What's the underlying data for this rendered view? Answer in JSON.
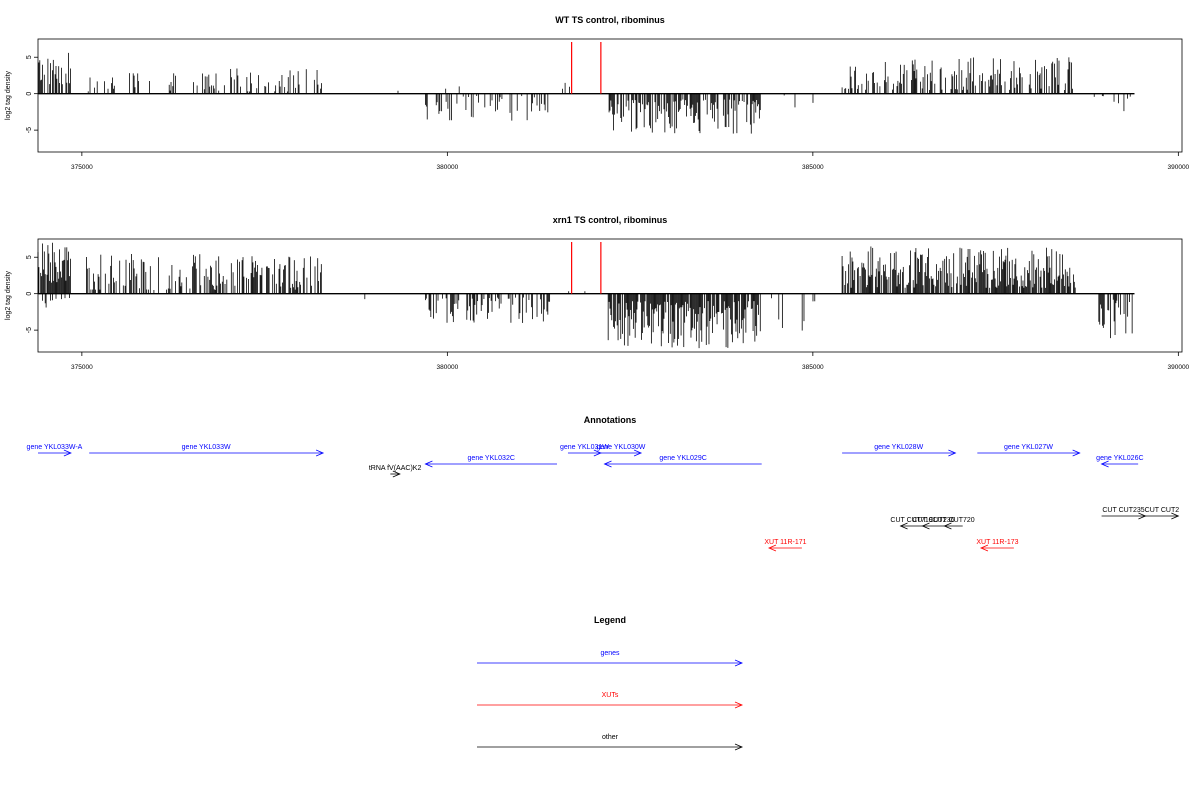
{
  "colors": {
    "axis": "#000000",
    "bars": "#000000",
    "marker": "#ff0000",
    "gene": "#0000ff",
    "xut": "#ff0000",
    "other": "#000000"
  },
  "chart_data": [
    {
      "type": "bar",
      "panel": "wt",
      "title": "WT TS control, ribominus",
      "xlabel": "",
      "ylabel": "log2 tag density",
      "xlim": [
        374400,
        390050
      ],
      "ylim": [
        -8,
        7.5
      ],
      "x_ticks": [
        375000,
        380000,
        385000,
        390000
      ],
      "x_tick_labels": [
        "375000",
        "380000",
        "385000",
        "390000"
      ],
      "y_ticks": [
        -5,
        0,
        5
      ],
      "y_tick_labels": [
        "-5",
        "0",
        "5"
      ],
      "marker_lines_x": [
        381700,
        382100
      ],
      "baseline_range": [
        374400,
        389400
      ],
      "segments": [
        {
          "x_start": 374400,
          "x_end": 374850,
          "sign": 1,
          "min": 1.2,
          "max": 5.8,
          "density": 0.55
        },
        {
          "x_start": 375050,
          "x_end": 376900,
          "sign": 1,
          "min": 0.3,
          "max": 3.0,
          "density": 0.22
        },
        {
          "x_start": 376900,
          "x_end": 378300,
          "sign": 1,
          "min": 0.3,
          "max": 3.6,
          "density": 0.24
        },
        {
          "x_start": 378800,
          "x_end": 379300,
          "sign": -1,
          "min": 0.4,
          "max": 1.8,
          "density": 0.06
        },
        {
          "x_start": 379300,
          "x_end": 380500,
          "sign": 1,
          "min": 0.3,
          "max": 1.5,
          "density": 0.03
        },
        {
          "x_start": 379700,
          "x_end": 381400,
          "sign": -1,
          "min": 0.3,
          "max": 4.0,
          "density": 0.28
        },
        {
          "x_start": 381500,
          "x_end": 381900,
          "sign": 1,
          "min": 0.3,
          "max": 1.5,
          "density": 0.08
        },
        {
          "x_start": 382200,
          "x_end": 384300,
          "sign": -1,
          "min": 0.8,
          "max": 5.5,
          "density": 0.6
        },
        {
          "x_start": 384300,
          "x_end": 385200,
          "sign": -1,
          "min": 0.2,
          "max": 2.5,
          "density": 0.05
        },
        {
          "x_start": 385400,
          "x_end": 388600,
          "sign": 1,
          "min": 0.5,
          "max": 5.0,
          "density": 0.45
        },
        {
          "x_start": 388800,
          "x_end": 389350,
          "sign": -1,
          "min": 0.3,
          "max": 2.5,
          "density": 0.12
        }
      ]
    },
    {
      "type": "bar",
      "panel": "xrn1",
      "title": "xrn1 TS control, ribominus",
      "xlabel": "",
      "ylabel": "log2 tag density",
      "xlim": [
        374400,
        390050
      ],
      "ylim": [
        -8,
        7.5
      ],
      "x_ticks": [
        375000,
        380000,
        385000,
        390000
      ],
      "x_tick_labels": [
        "375000",
        "380000",
        "385000",
        "390000"
      ],
      "y_ticks": [
        -5,
        0,
        5
      ],
      "y_tick_labels": [
        "-5",
        "0",
        "5"
      ],
      "marker_lines_x": [
        381700,
        382100
      ],
      "baseline_range": [
        374400,
        389400
      ],
      "segments": [
        {
          "x_start": 374400,
          "x_end": 374850,
          "sign": 1,
          "min": 1.5,
          "max": 7.0,
          "density": 0.9
        },
        {
          "x_start": 374400,
          "x_end": 374850,
          "sign": -1,
          "min": 0.3,
          "max": 2.5,
          "density": 0.2
        },
        {
          "x_start": 375050,
          "x_end": 378300,
          "sign": 1,
          "min": 0.5,
          "max": 5.5,
          "density": 0.5
        },
        {
          "x_start": 378600,
          "x_end": 379300,
          "sign": -1,
          "min": 0.3,
          "max": 1.8,
          "density": 0.06
        },
        {
          "x_start": 379700,
          "x_end": 381400,
          "sign": -1,
          "min": 0.5,
          "max": 4.2,
          "density": 0.45
        },
        {
          "x_start": 381500,
          "x_end": 381900,
          "sign": 1,
          "min": 0.3,
          "max": 1.5,
          "density": 0.08
        },
        {
          "x_start": 382200,
          "x_end": 384300,
          "sign": -1,
          "min": 1.0,
          "max": 7.5,
          "density": 0.85
        },
        {
          "x_start": 384300,
          "x_end": 385200,
          "sign": -1,
          "min": 0.3,
          "max": 5.5,
          "density": 0.08
        },
        {
          "x_start": 385400,
          "x_end": 388600,
          "sign": 1,
          "min": 0.8,
          "max": 6.5,
          "density": 0.8
        },
        {
          "x_start": 388900,
          "x_end": 389400,
          "sign": -1,
          "min": 0.8,
          "max": 6.5,
          "density": 0.55
        }
      ]
    }
  ],
  "annotations": {
    "title": "Annotations",
    "xlim": [
      374400,
      390050
    ],
    "items": [
      {
        "label": "gene YKL033W-A",
        "category": "gene",
        "x_start": 374400,
        "x_end": 374850,
        "strand": "+",
        "row": 0
      },
      {
        "label": "gene YKL033W",
        "category": "gene",
        "x_start": 375100,
        "x_end": 378300,
        "strand": "+",
        "row": 0
      },
      {
        "label": "gene YKL032C",
        "category": "gene",
        "x_start": 379700,
        "x_end": 381500,
        "strand": "-",
        "row": 1
      },
      {
        "label": "gene YKL031W",
        "category": "gene",
        "x_start": 381650,
        "x_end": 382100,
        "strand": "+",
        "row": 0
      },
      {
        "label": "gene YKL030W",
        "category": "gene",
        "x_start": 382100,
        "x_end": 382650,
        "strand": "+",
        "row": 0
      },
      {
        "label": "gene YKL029C",
        "category": "gene",
        "x_start": 382150,
        "x_end": 384300,
        "strand": "-",
        "row": 1
      },
      {
        "label": "gene YKL028W",
        "category": "gene",
        "x_start": 385400,
        "x_end": 386950,
        "strand": "+",
        "row": 0
      },
      {
        "label": "gene YKL027W",
        "category": "gene",
        "x_start": 387250,
        "x_end": 388650,
        "strand": "+",
        "row": 0
      },
      {
        "label": "gene YKL026C",
        "category": "gene",
        "x_start": 388950,
        "x_end": 389450,
        "strand": "-",
        "row": 1
      },
      {
        "label": "tRNA fV(AAC)K2",
        "category": "other",
        "x_start": 379220,
        "x_end": 379350,
        "strand": "+",
        "row": 2
      },
      {
        "label": "CUT CUT719",
        "category": "other",
        "x_start": 386200,
        "x_end": 386500,
        "strand": "-",
        "row": 3
      },
      {
        "label": "CUT CUT236",
        "category": "other",
        "x_start": 386500,
        "x_end": 386800,
        "strand": "-",
        "row": 3
      },
      {
        "label": "CUT CUT720",
        "category": "other",
        "x_start": 386800,
        "x_end": 387050,
        "strand": "-",
        "row": 3
      },
      {
        "label": "CUT CUT235",
        "category": "other",
        "x_start": 388950,
        "x_end": 389550,
        "strand": "+",
        "row": 4
      },
      {
        "label": "CUT CUT2",
        "category": "other",
        "x_start": 389550,
        "x_end": 390000,
        "strand": "+",
        "row": 4
      },
      {
        "label": "XUT 11R-171",
        "category": "xut",
        "x_start": 384400,
        "x_end": 384850,
        "strand": "-",
        "row": 5
      },
      {
        "label": "XUT 11R-173",
        "category": "xut",
        "x_start": 387300,
        "x_end": 387750,
        "strand": "-",
        "row": 5
      }
    ]
  },
  "legend": {
    "title": "Legend",
    "items": [
      {
        "label": "genes",
        "category": "gene"
      },
      {
        "label": "XUTs",
        "category": "xut"
      },
      {
        "label": "other",
        "category": "other"
      }
    ]
  }
}
